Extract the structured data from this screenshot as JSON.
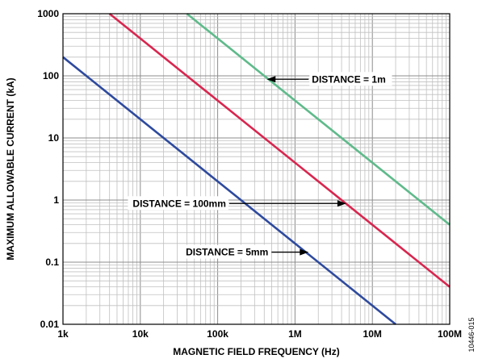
{
  "chart_data": {
    "type": "line",
    "x_scale": "log",
    "y_scale": "log",
    "xlim": [
      1000,
      100000000
    ],
    "ylim": [
      0.01,
      1000
    ],
    "grid": true,
    "xlabel": "MAGNETIC FIELD FREQUENCY (Hz)",
    "ylabel": "MAXIMUM ALLOWABLE CURRENT (kA)",
    "x_ticks": [
      {
        "value": 1000,
        "label": "1k"
      },
      {
        "value": 10000,
        "label": "10k"
      },
      {
        "value": 100000,
        "label": "100k"
      },
      {
        "value": 1000000,
        "label": "1M"
      },
      {
        "value": 10000000,
        "label": "10M"
      },
      {
        "value": 100000000,
        "label": "100M"
      }
    ],
    "y_ticks": [
      {
        "value": 0.01,
        "label": "0.01"
      },
      {
        "value": 0.1,
        "label": "0.1"
      },
      {
        "value": 1,
        "label": "1"
      },
      {
        "value": 10,
        "label": "10"
      },
      {
        "value": 100,
        "label": "100"
      },
      {
        "value": 1000,
        "label": "1000"
      }
    ],
    "series": [
      {
        "color": "#2e4a9e",
        "x": [
          1000,
          20000000
        ],
        "y": [
          200,
          0.01
        ]
      },
      {
        "color": "#d8264f",
        "x": [
          4000,
          100000000
        ],
        "y": [
          1000,
          0.04
        ]
      },
      {
        "color": "#5fba8b",
        "x": [
          40000,
          100000000
        ],
        "y": [
          1000,
          0.4
        ]
      }
    ],
    "annotations": [
      {
        "text": "DISTANCE = 1m",
        "x": 430000,
        "y": 88
      },
      {
        "text": "DISTANCE = 100mm",
        "x": 4600000,
        "y": 0.88
      },
      {
        "text": "DISTANCE = 5mm",
        "x": 1500000,
        "y": 0.145
      }
    ],
    "figure_code": "10446-015"
  }
}
